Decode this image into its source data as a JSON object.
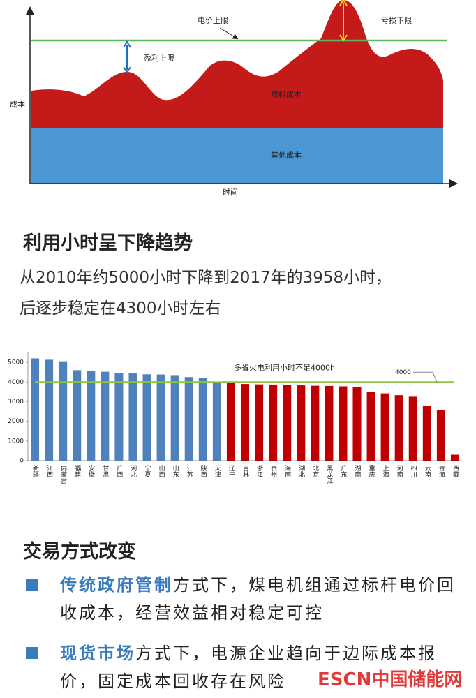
{
  "diagram": {
    "price_cap": "电价上限",
    "loss_floor": "亏损下限",
    "profit_cap": "盈利上限",
    "y_label": "成本",
    "fuel_cost": "燃料成本",
    "other_cost": "其他成本",
    "x_label": "时间"
  },
  "sections": [
    {
      "title": "利用小时呈下降趋势",
      "body_lines": [
        "从2010年约5000小时下降到2017年的3958小时，",
        "后逐步稳定在4300小时左右"
      ]
    },
    {
      "title": "交易方式改变",
      "bullets": [
        {
          "bold": "传统政府管制",
          "text": "方式下，煤电机组通过标杆电价回收成本，经营效益相对稳定可控"
        },
        {
          "bold": "现货市场",
          "text": "方式下，电源企业趋向于边际成本报价，固定成本回收存在风险"
        }
      ]
    }
  ],
  "chart_data": {
    "type": "bar",
    "categories": [
      "新疆",
      "江西",
      "内蒙古",
      "福建",
      "安徽",
      "甘肃",
      "广西",
      "河北",
      "宁夏",
      "山西",
      "山东",
      "江苏",
      "陕西",
      "天津",
      "辽宁",
      "吉林",
      "浙江",
      "贵州",
      "海南",
      "湖北",
      "北京",
      "黑龙江",
      "广东",
      "湖南",
      "重庆",
      "上海",
      "河南",
      "四川",
      "云南",
      "青海",
      "西藏"
    ],
    "values": [
      5200,
      5130,
      5050,
      4600,
      4560,
      4520,
      4470,
      4460,
      4390,
      4380,
      4350,
      4250,
      4220,
      3980,
      3940,
      3900,
      3880,
      3870,
      3850,
      3830,
      3810,
      3800,
      3780,
      3750,
      3480,
      3420,
      3330,
      3250,
      2780,
      2560,
      300
    ],
    "colors": [
      "#4f81bd",
      "#4f81bd",
      "#4f81bd",
      "#4f81bd",
      "#4f81bd",
      "#4f81bd",
      "#4f81bd",
      "#4f81bd",
      "#4f81bd",
      "#4f81bd",
      "#4f81bd",
      "#4f81bd",
      "#4f81bd",
      "#4f81bd",
      "#c00000",
      "#c00000",
      "#c00000",
      "#c00000",
      "#c00000",
      "#c00000",
      "#c00000",
      "#c00000",
      "#c00000",
      "#c00000",
      "#c00000",
      "#c00000",
      "#c00000",
      "#c00000",
      "#c00000",
      "#c00000",
      "#c00000"
    ],
    "ylim": [
      0,
      5500
    ],
    "yticks": [
      0,
      1000,
      2000,
      3000,
      4000,
      5000
    ],
    "reference_line": {
      "value": 4000,
      "color": "#8dc63f"
    },
    "annotation": "多省火电利用小时不足4000h"
  },
  "watermark": "ESCN中国储能网"
}
